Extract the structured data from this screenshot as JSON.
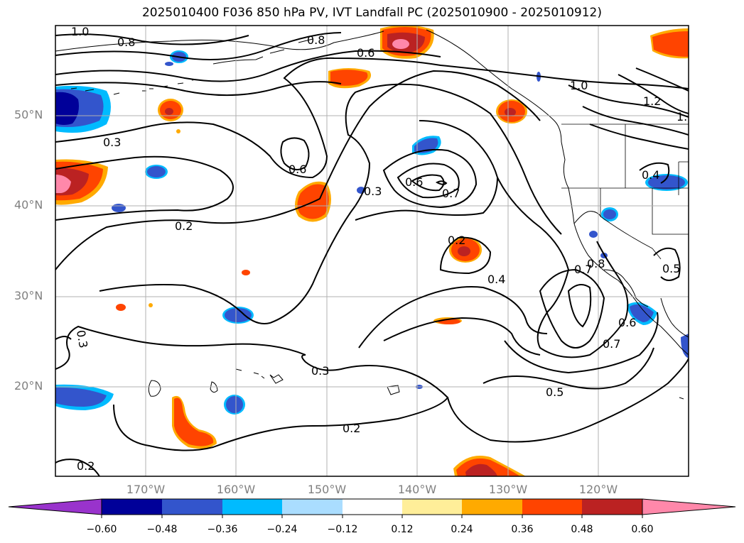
{
  "title": "2025010400 F036 850 hPa PV, IVT Landfall PC (2025010900 - 2025010912)",
  "map": {
    "lat_labels": [
      "50°N",
      "40°N",
      "30°N",
      "20°N"
    ],
    "lon_labels": [
      "170°W",
      "160°W",
      "150°W",
      "140°W",
      "130°W",
      "120°W"
    ]
  },
  "contour_labels": [
    "1.0",
    "0.8",
    "0.8",
    "0.6",
    "1.0",
    "1.2",
    "1.",
    "0.3",
    "0.6",
    "0.3",
    "0.6",
    "0.7",
    "0.4",
    "0.2",
    "0.2",
    "0.4",
    "0.7",
    "0.8",
    "0.5",
    "0.6",
    "0.7",
    "0.3",
    "0.5",
    "0.2",
    "0.2",
    "0.3"
  ],
  "colorbar": {
    "colors": [
      "#9933cc",
      "#000099",
      "#3355cc",
      "#00bbff",
      "#aaddff",
      "#ffffff",
      "#ffee99",
      "#ffaa00",
      "#ff4400",
      "#bb2222",
      "#ff88aa"
    ],
    "ticks": [
      "−0.60",
      "−0.48",
      "−0.36",
      "−0.24",
      "−0.12",
      "0.12",
      "0.24",
      "0.36",
      "0.48",
      "0.60"
    ]
  },
  "shading_colors": {
    "neg_strong": "#000099",
    "neg_mid": "#3355cc",
    "neg_weak": "#00bbff",
    "neg_faint": "#aaddff",
    "pos_faint": "#ffee99",
    "pos_weak": "#ffaa00",
    "pos_mid": "#ff4400",
    "pos_strong": "#bb2222",
    "pos_max": "#ff88aa"
  }
}
